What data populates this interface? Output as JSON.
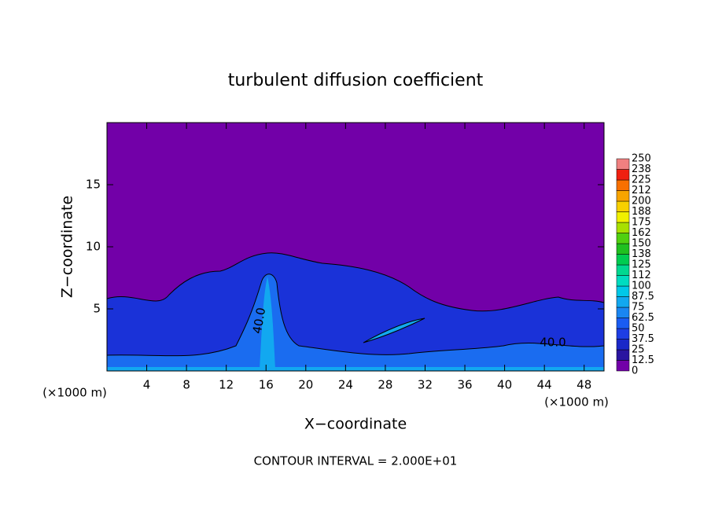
{
  "chart_data": {
    "type": "contour",
    "title": "turbulent diffusion coefficient",
    "x_label": "X−coordinate",
    "y_label": "Z−coordinate",
    "x_unit": "(×1000 m)",
    "footer": "CONTOUR INTERVAL = 2.000E+01",
    "contour_labels": [
      "40.0",
      "40.0"
    ],
    "xlim": [
      0,
      50
    ],
    "ylim": [
      0,
      20
    ],
    "xticks": [
      4,
      8,
      12,
      16,
      20,
      24,
      28,
      32,
      36,
      40,
      44,
      48
    ],
    "yticks": [
      5,
      10,
      15
    ],
    "levels": [
      0,
      12.5,
      25,
      37.5,
      50,
      62.5,
      75,
      87.5,
      100,
      {
        "value": 112.5,
        "label": "112"
      },
      125,
      {
        "value": 137.5,
        "label": "138"
      },
      150,
      {
        "value": 162.5,
        "label": "162"
      },
      175,
      {
        "value": 187.5,
        "label": "188"
      },
      200,
      {
        "value": 212.5,
        "label": "212"
      },
      225,
      {
        "value": 237.5,
        "label": "238"
      },
      250
    ],
    "colors": [
      "#7200a8",
      "#2a14a0",
      "#1a28c8",
      "#1e3ee4",
      "#1a5cf2",
      "#1a86f2",
      "#12a8f0",
      "#00c8e8",
      "#00dcc0",
      "#00d890",
      "#00cc50",
      "#20c020",
      "#50d010",
      "#a8e000",
      "#f0f000",
      "#f8d000",
      "#f8a400",
      "#f87000",
      "#f02010",
      "#f08080"
    ]
  }
}
